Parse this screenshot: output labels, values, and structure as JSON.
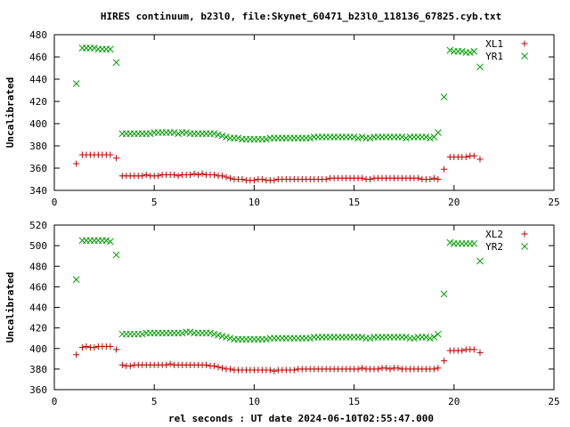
{
  "title": "HIRES continuum, b23l0, file:Skynet_60471_b23l0_118136_67825.cyb.txt",
  "xlabel": "rel seconds : UT date 2024-06-10T02:55:47.000",
  "colors": {
    "series_a": "#c00000",
    "series_b": "#00a000"
  },
  "chart_data": [
    {
      "type": "scatter",
      "ylabel": "Uncalibrated",
      "xlim": [
        0,
        25
      ],
      "ylim": [
        340,
        480
      ],
      "xticks": [
        0,
        5,
        10,
        15,
        20,
        25
      ],
      "yticks": [
        340,
        360,
        380,
        400,
        420,
        440,
        460,
        480
      ],
      "legend": "top-right",
      "grid": false,
      "series": [
        {
          "name": "XL1",
          "marker": "plus",
          "x": [
            1.1,
            1.4,
            1.6,
            1.8,
            2.0,
            2.2,
            2.4,
            2.6,
            2.8,
            3.1,
            3.4,
            3.6,
            3.8,
            4.0,
            4.2,
            4.4,
            4.6,
            4.8,
            5.0,
            5.2,
            5.4,
            5.6,
            5.8,
            6.0,
            6.2,
            6.4,
            6.6,
            6.8,
            7.0,
            7.2,
            7.4,
            7.6,
            7.8,
            8.0,
            8.2,
            8.4,
            8.6,
            8.8,
            9.0,
            9.2,
            9.4,
            9.6,
            9.8,
            10.0,
            10.2,
            10.4,
            10.6,
            10.8,
            11.0,
            11.2,
            11.4,
            11.6,
            11.8,
            12.0,
            12.2,
            12.4,
            12.6,
            12.8,
            13.0,
            13.2,
            13.4,
            13.6,
            13.8,
            14.0,
            14.2,
            14.4,
            14.6,
            14.8,
            15.0,
            15.2,
            15.4,
            15.6,
            15.8,
            16.0,
            16.2,
            16.4,
            16.6,
            16.8,
            17.0,
            17.2,
            17.4,
            17.6,
            17.8,
            18.0,
            18.2,
            18.4,
            18.6,
            18.8,
            19.0,
            19.2,
            19.5,
            19.8,
            20.0,
            20.2,
            20.4,
            20.6,
            20.8,
            21.0,
            21.3
          ],
          "y": [
            364,
            372,
            372,
            372,
            372,
            372,
            372,
            372,
            372,
            369,
            353,
            353,
            353,
            353,
            353,
            353,
            354,
            353,
            353,
            353,
            354,
            354,
            354,
            354,
            353,
            354,
            354,
            354,
            355,
            354,
            355,
            354,
            354,
            354,
            353,
            353,
            352,
            351,
            350,
            350,
            350,
            349,
            349,
            349,
            350,
            350,
            349,
            349,
            349,
            350,
            350,
            350,
            350,
            350,
            350,
            350,
            350,
            350,
            350,
            350,
            350,
            350,
            351,
            351,
            351,
            351,
            351,
            351,
            351,
            351,
            351,
            350,
            350,
            351,
            351,
            351,
            351,
            351,
            351,
            351,
            351,
            351,
            351,
            351,
            351,
            350,
            350,
            350,
            351,
            350,
            359,
            370,
            370,
            370,
            370,
            370,
            371,
            371,
            368
          ]
        },
        {
          "name": "YR1",
          "marker": "cross",
          "x": [
            1.1,
            1.4,
            1.6,
            1.8,
            2.0,
            2.2,
            2.4,
            2.6,
            2.8,
            3.1,
            3.4,
            3.6,
            3.8,
            4.0,
            4.2,
            4.4,
            4.6,
            4.8,
            5.0,
            5.2,
            5.4,
            5.6,
            5.8,
            6.0,
            6.2,
            6.4,
            6.6,
            6.8,
            7.0,
            7.2,
            7.4,
            7.6,
            7.8,
            8.0,
            8.2,
            8.4,
            8.6,
            8.8,
            9.0,
            9.2,
            9.4,
            9.6,
            9.8,
            10.0,
            10.2,
            10.4,
            10.6,
            10.8,
            11.0,
            11.2,
            11.4,
            11.6,
            11.8,
            12.0,
            12.2,
            12.4,
            12.6,
            12.8,
            13.0,
            13.2,
            13.4,
            13.6,
            13.8,
            14.0,
            14.2,
            14.4,
            14.6,
            14.8,
            15.0,
            15.2,
            15.4,
            15.6,
            15.8,
            16.0,
            16.2,
            16.4,
            16.6,
            16.8,
            17.0,
            17.2,
            17.4,
            17.6,
            17.8,
            18.0,
            18.2,
            18.4,
            18.6,
            18.8,
            19.0,
            19.2,
            19.5,
            19.8,
            20.0,
            20.2,
            20.4,
            20.6,
            20.8,
            21.0,
            21.3
          ],
          "y": [
            436,
            468,
            468,
            468,
            468,
            467,
            467,
            467,
            467,
            455,
            391,
            391,
            391,
            391,
            391,
            391,
            391,
            391,
            392,
            392,
            392,
            392,
            392,
            392,
            391,
            392,
            392,
            391,
            391,
            391,
            391,
            391,
            391,
            391,
            390,
            389,
            388,
            387,
            387,
            387,
            386,
            386,
            386,
            386,
            386,
            386,
            386,
            387,
            387,
            387,
            387,
            387,
            387,
            387,
            387,
            387,
            387,
            387,
            388,
            388,
            388,
            388,
            388,
            388,
            388,
            388,
            388,
            388,
            388,
            387,
            388,
            387,
            387,
            388,
            388,
            388,
            388,
            388,
            388,
            388,
            388,
            387,
            388,
            388,
            388,
            388,
            388,
            387,
            388,
            392,
            424,
            466,
            465,
            465,
            465,
            464,
            464,
            465,
            451
          ]
        }
      ]
    },
    {
      "type": "scatter",
      "ylabel": "Uncalibrated",
      "xlim": [
        0,
        25
      ],
      "ylim": [
        360,
        520
      ],
      "xticks": [
        0,
        5,
        10,
        15,
        20,
        25
      ],
      "yticks": [
        360,
        380,
        400,
        420,
        440,
        460,
        480,
        500,
        520
      ],
      "legend": "top-right",
      "grid": false,
      "series": [
        {
          "name": "XL2",
          "marker": "plus",
          "x": [
            1.1,
            1.4,
            1.6,
            1.8,
            2.0,
            2.2,
            2.4,
            2.6,
            2.8,
            3.1,
            3.4,
            3.6,
            3.8,
            4.0,
            4.2,
            4.4,
            4.6,
            4.8,
            5.0,
            5.2,
            5.4,
            5.6,
            5.8,
            6.0,
            6.2,
            6.4,
            6.6,
            6.8,
            7.0,
            7.2,
            7.4,
            7.6,
            7.8,
            8.0,
            8.2,
            8.4,
            8.6,
            8.8,
            9.0,
            9.2,
            9.4,
            9.6,
            9.8,
            10.0,
            10.2,
            10.4,
            10.6,
            10.8,
            11.0,
            11.2,
            11.4,
            11.6,
            11.8,
            12.0,
            12.2,
            12.4,
            12.6,
            12.8,
            13.0,
            13.2,
            13.4,
            13.6,
            13.8,
            14.0,
            14.2,
            14.4,
            14.6,
            14.8,
            15.0,
            15.2,
            15.4,
            15.6,
            15.8,
            16.0,
            16.2,
            16.4,
            16.6,
            16.8,
            17.0,
            17.2,
            17.4,
            17.6,
            17.8,
            18.0,
            18.2,
            18.4,
            18.6,
            18.8,
            19.0,
            19.2,
            19.5,
            19.8,
            20.0,
            20.2,
            20.4,
            20.6,
            20.8,
            21.0,
            21.3
          ],
          "y": [
            394,
            401,
            402,
            401,
            401,
            402,
            402,
            402,
            402,
            399,
            384,
            383,
            383,
            384,
            384,
            384,
            384,
            384,
            384,
            384,
            384,
            384,
            385,
            384,
            384,
            384,
            384,
            384,
            384,
            384,
            384,
            384,
            383,
            383,
            382,
            381,
            380,
            380,
            379,
            379,
            379,
            379,
            379,
            379,
            379,
            379,
            379,
            379,
            378,
            379,
            379,
            379,
            379,
            379,
            380,
            380,
            380,
            380,
            380,
            380,
            380,
            380,
            380,
            380,
            380,
            380,
            380,
            380,
            380,
            380,
            381,
            380,
            380,
            380,
            380,
            381,
            381,
            380,
            381,
            381,
            380,
            380,
            380,
            380,
            380,
            380,
            380,
            380,
            380,
            381,
            388,
            398,
            398,
            398,
            398,
            399,
            399,
            399,
            396
          ]
        },
        {
          "name": "YR2",
          "marker": "cross",
          "x": [
            1.1,
            1.4,
            1.6,
            1.8,
            2.0,
            2.2,
            2.4,
            2.6,
            2.8,
            3.1,
            3.4,
            3.6,
            3.8,
            4.0,
            4.2,
            4.4,
            4.6,
            4.8,
            5.0,
            5.2,
            5.4,
            5.6,
            5.8,
            6.0,
            6.2,
            6.4,
            6.6,
            6.8,
            7.0,
            7.2,
            7.4,
            7.6,
            7.8,
            8.0,
            8.2,
            8.4,
            8.6,
            8.8,
            9.0,
            9.2,
            9.4,
            9.6,
            9.8,
            10.0,
            10.2,
            10.4,
            10.6,
            10.8,
            11.0,
            11.2,
            11.4,
            11.6,
            11.8,
            12.0,
            12.2,
            12.4,
            12.6,
            12.8,
            13.0,
            13.2,
            13.4,
            13.6,
            13.8,
            14.0,
            14.2,
            14.4,
            14.6,
            14.8,
            15.0,
            15.2,
            15.4,
            15.6,
            15.8,
            16.0,
            16.2,
            16.4,
            16.6,
            16.8,
            17.0,
            17.2,
            17.4,
            17.6,
            17.8,
            18.0,
            18.2,
            18.4,
            18.6,
            18.8,
            19.0,
            19.2,
            19.5,
            19.8,
            20.0,
            20.2,
            20.4,
            20.6,
            20.8,
            21.0,
            21.3
          ],
          "y": [
            467,
            505,
            505,
            505,
            505,
            505,
            505,
            505,
            504,
            491,
            414,
            414,
            414,
            414,
            414,
            414,
            415,
            415,
            415,
            415,
            415,
            415,
            415,
            415,
            415,
            415,
            416,
            416,
            415,
            415,
            415,
            415,
            415,
            414,
            413,
            412,
            411,
            410,
            409,
            409,
            409,
            409,
            409,
            409,
            409,
            409,
            409,
            410,
            410,
            410,
            410,
            410,
            410,
            410,
            410,
            410,
            410,
            410,
            411,
            411,
            411,
            411,
            411,
            411,
            411,
            411,
            411,
            411,
            411,
            411,
            411,
            410,
            410,
            411,
            411,
            411,
            411,
            411,
            411,
            411,
            411,
            411,
            410,
            410,
            411,
            411,
            411,
            410,
            411,
            414,
            453,
            503,
            502,
            502,
            502,
            502,
            502,
            502,
            485
          ]
        }
      ]
    }
  ]
}
